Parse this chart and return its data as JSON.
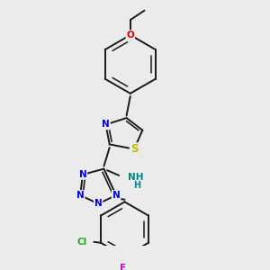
{
  "background_color": "#ebebeb",
  "bond_color": "#1a1a1a",
  "atom_colors": {
    "N": "#0000ee",
    "S": "#bbbb00",
    "O": "#dd0000",
    "Cl": "#22aa22",
    "F": "#cc00cc",
    "NH2": "#008888",
    "C": "#1a1a1a"
  },
  "font_size": 7.5,
  "bond_width": 1.4
}
